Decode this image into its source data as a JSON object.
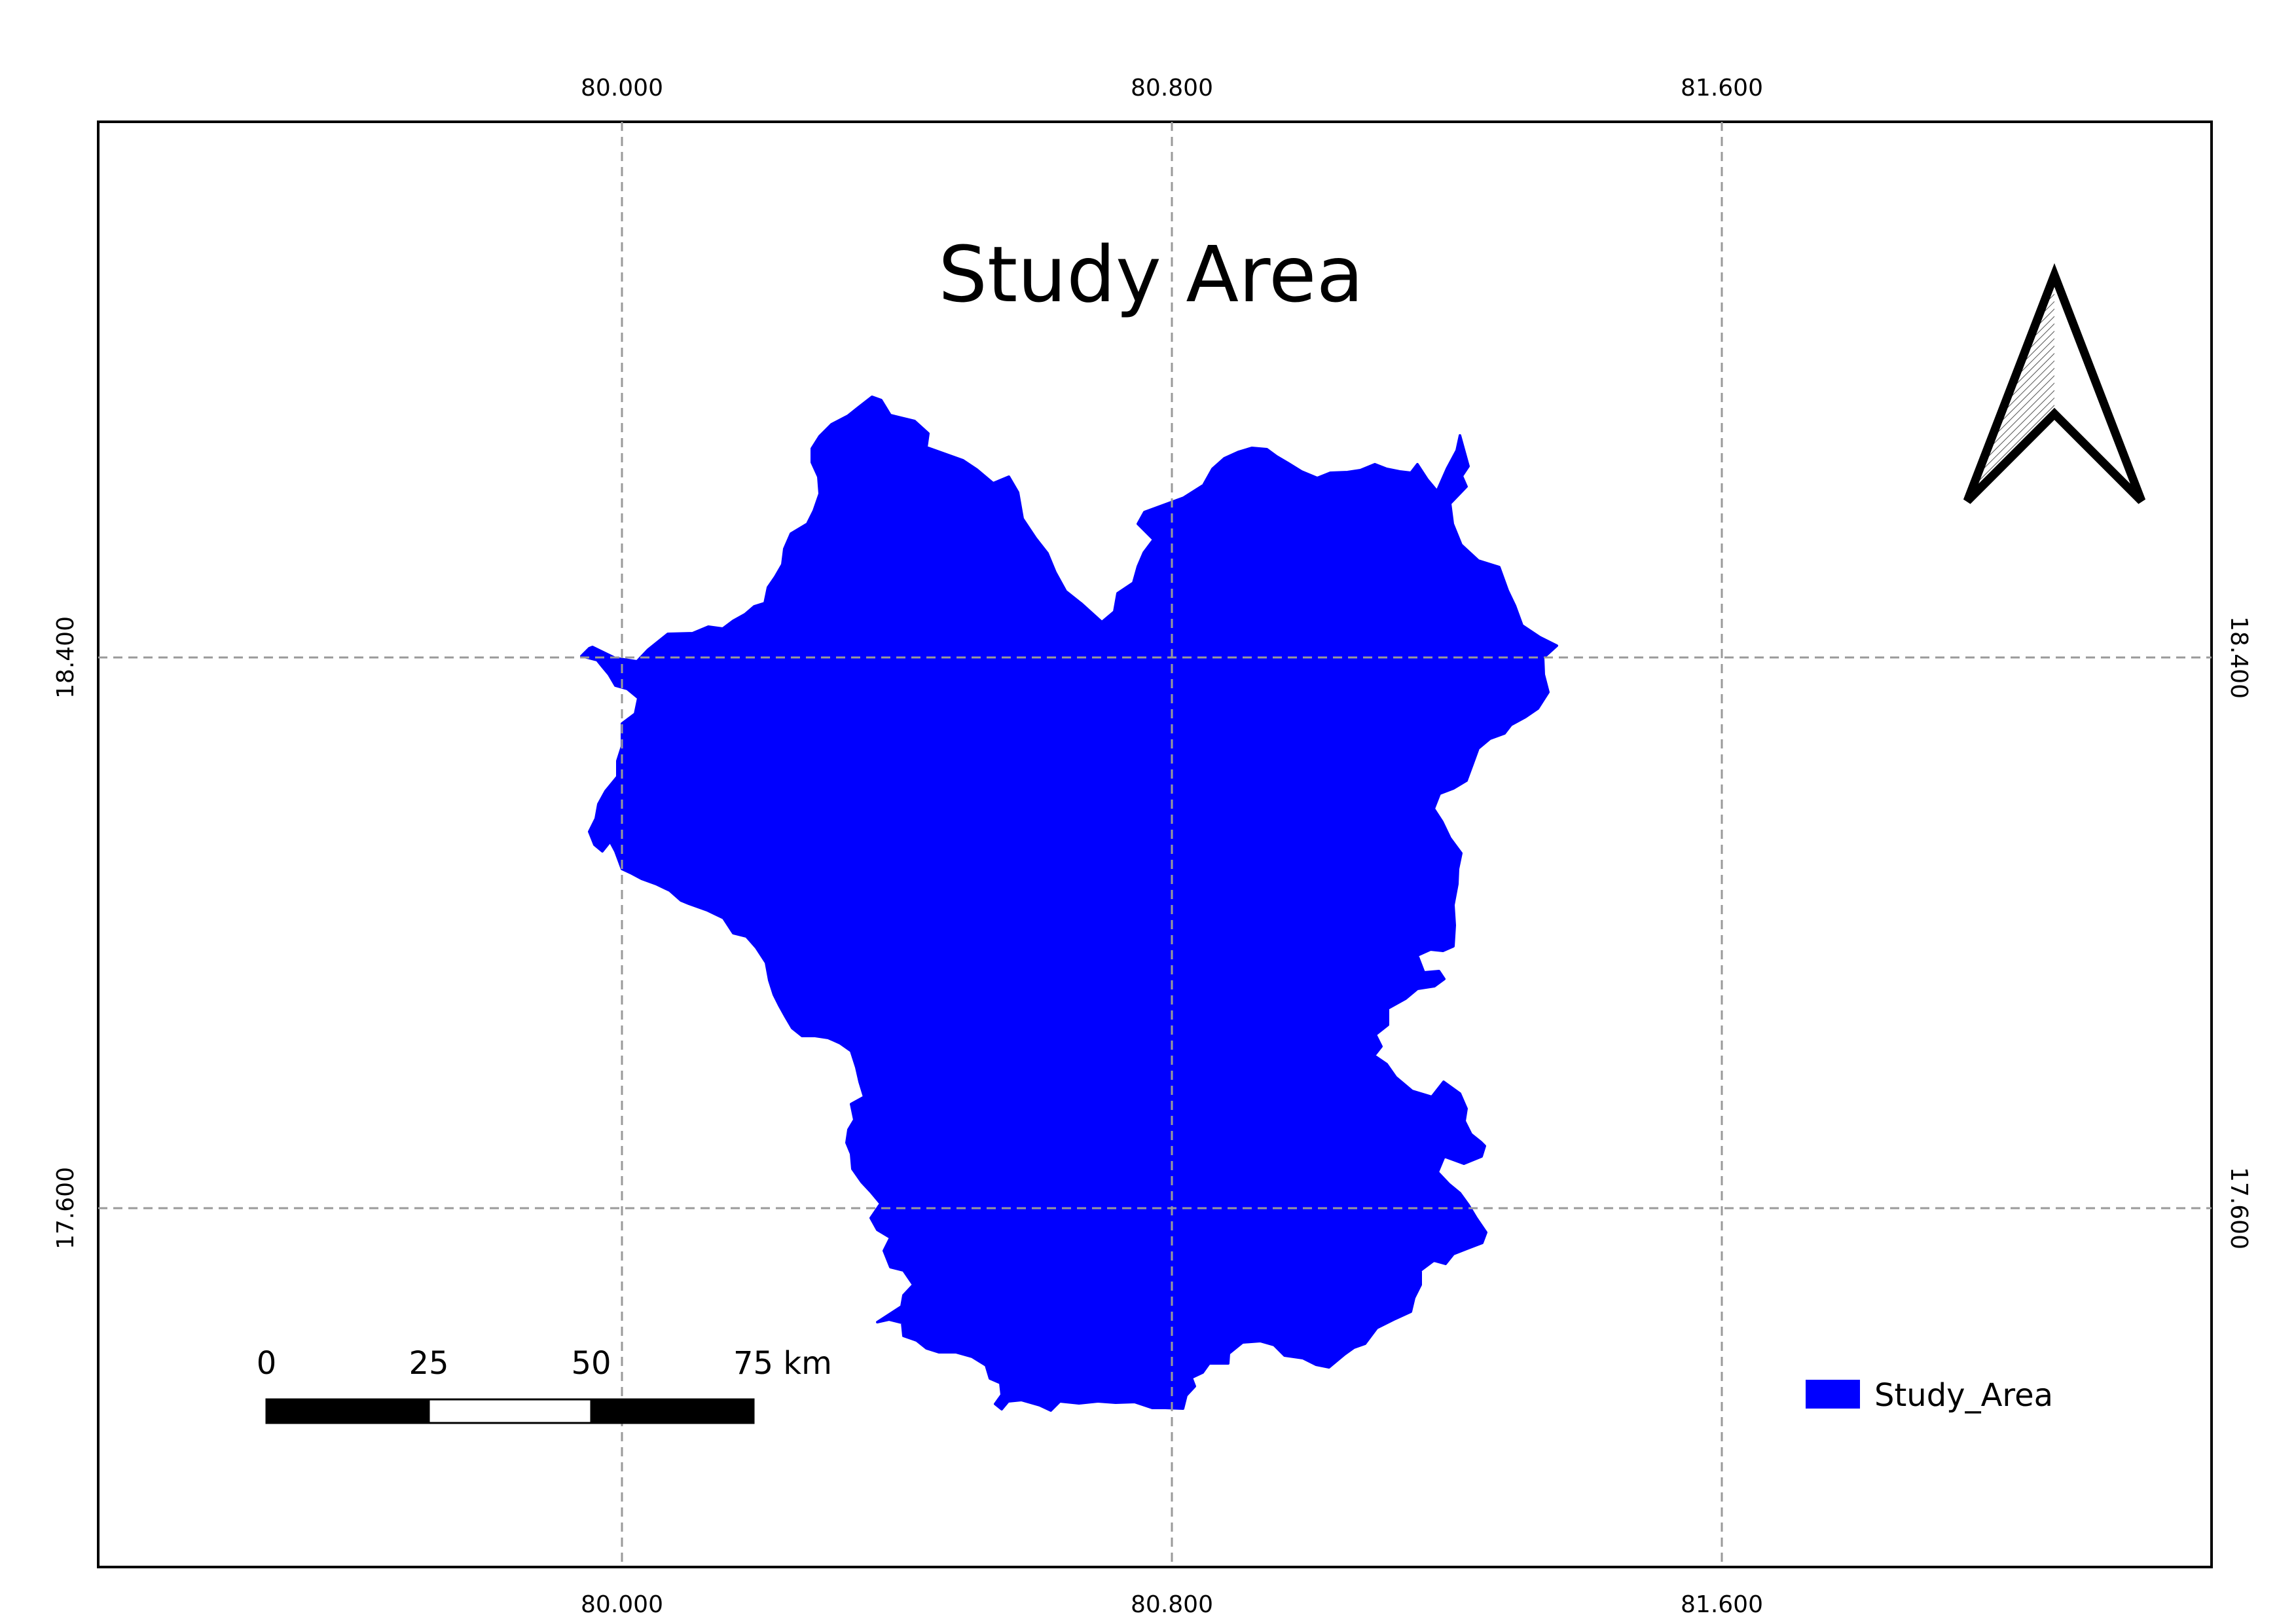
{
  "map": {
    "title": "Study Area",
    "grid": {
      "longitudes": [
        "80.000",
        "80.800",
        "81.600"
      ],
      "latitudes": [
        "18.400",
        "17.600"
      ]
    },
    "layer": {
      "name": "Study_Area",
      "fill_color": "#0000ff"
    },
    "scale_bar": {
      "ticks": [
        "0",
        "25",
        "50",
        "75 km"
      ]
    },
    "north_arrow": {
      "icon": "north-arrow-icon"
    },
    "legend": {
      "items": [
        {
          "label": "Study_Area",
          "color": "#0000ff"
        }
      ]
    }
  }
}
